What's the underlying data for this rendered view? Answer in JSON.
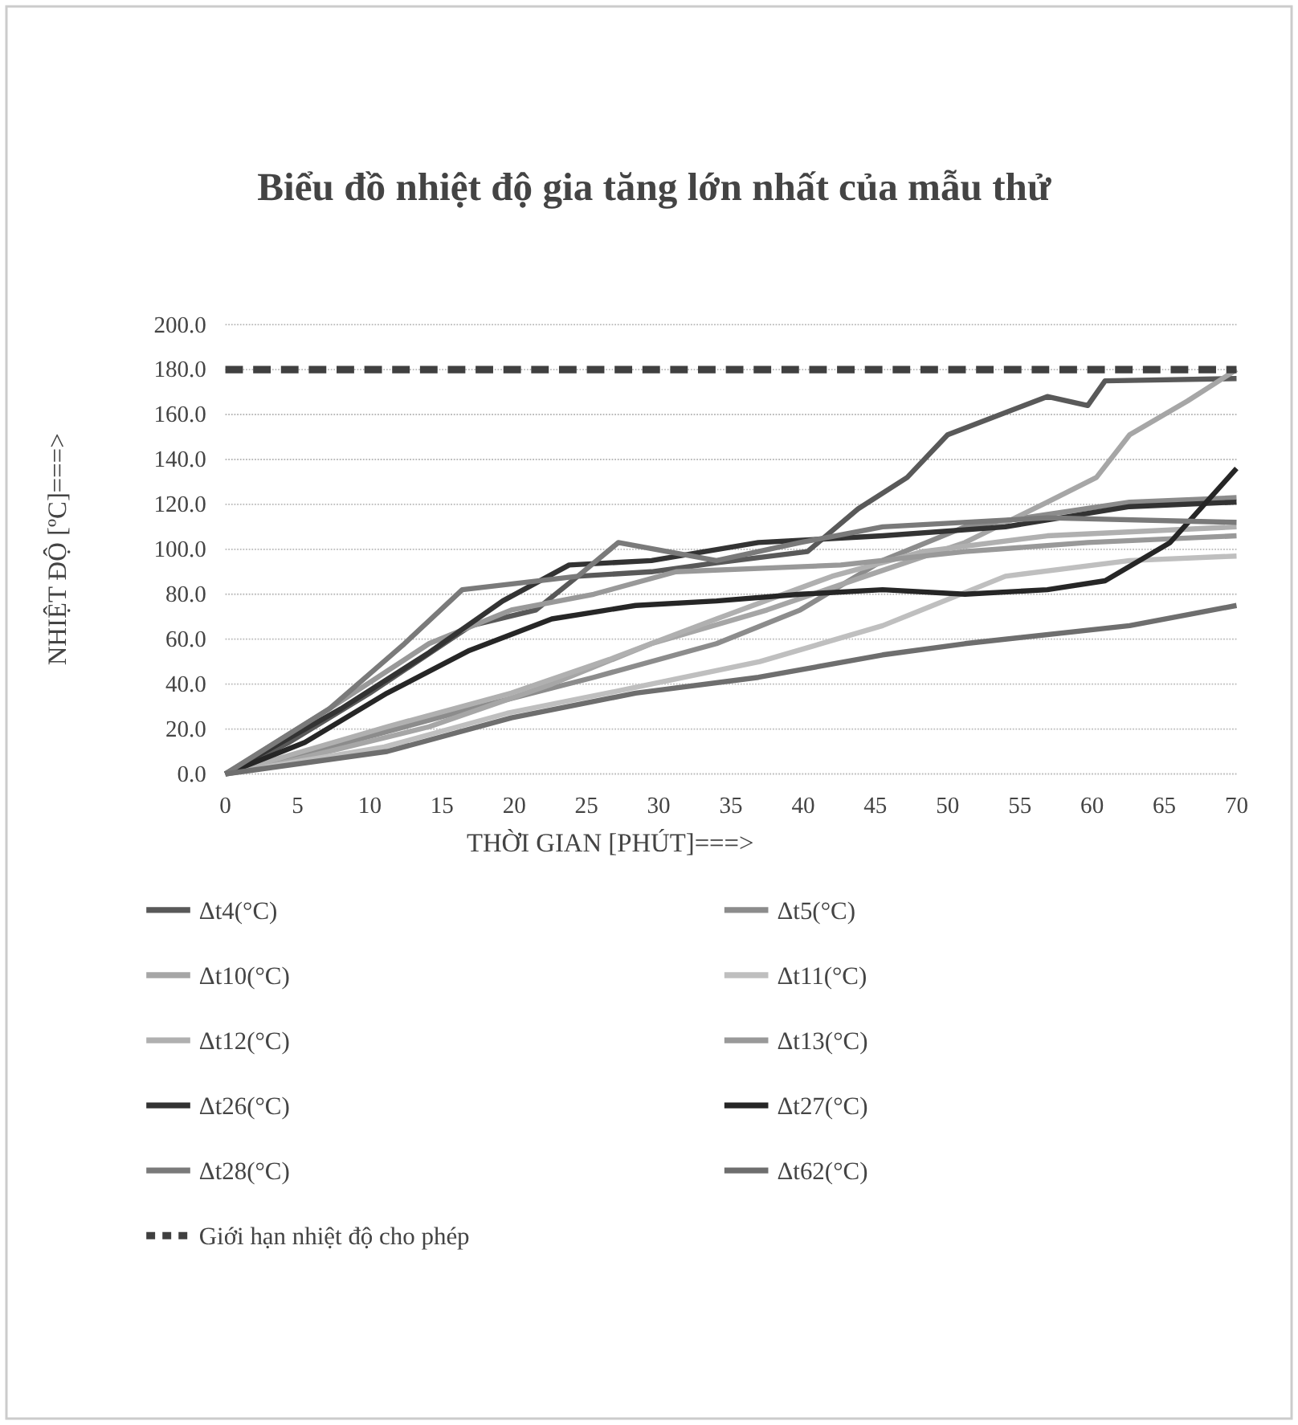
{
  "chart_data": {
    "type": "line",
    "title": "Biểu đồ nhiệt độ gia tăng lớn nhất của mẫu thử",
    "xlabel": "THỜI GIAN [PHÚT]===>",
    "ylabel": "NHIỆT ĐỘ [ºC]===>",
    "xlim": [
      0,
      70
    ],
    "xticks": [
      0,
      5,
      10,
      15,
      20,
      25,
      30,
      35,
      40,
      45,
      50,
      55,
      60,
      65,
      70
    ],
    "ylim": [
      0,
      200
    ],
    "yticks": [
      {
        "value": 0,
        "label": "0.0"
      },
      {
        "value": 20,
        "label": "20.0"
      },
      {
        "value": 40,
        "label": "40.0"
      },
      {
        "value": 60,
        "label": "60.0"
      },
      {
        "value": 80,
        "label": "80.0"
      },
      {
        "value": 100,
        "label": "100.0"
      },
      {
        "value": 120,
        "label": "120.0"
      },
      {
        "value": 140,
        "label": "140.0"
      },
      {
        "value": 160,
        "label": "160.0"
      },
      {
        "value": 180,
        "label": "180.0"
      },
      {
        "value": 200,
        "label": "200.0"
      }
    ],
    "grid": "y",
    "legend": "bottom",
    "series": [
      {
        "name": "Δt4(°C)",
        "color": "#595959",
        "x": [
          0,
          4.4,
          10,
          17,
          21.5,
          24.4,
          29.5,
          34,
          40.3,
          43.8,
          47.2,
          50,
          56.9,
          59.7,
          60.9,
          70
        ],
        "values": [
          0,
          14,
          36,
          66,
          73,
          88,
          90,
          94,
          99,
          118,
          132,
          151,
          168,
          164,
          175,
          176
        ]
      },
      {
        "name": "Δt5(°C)",
        "color": "#8c8c8c",
        "x": [
          0,
          8.4,
          17,
          25.5,
          34,
          39.8,
          45.5,
          51.2,
          62.6,
          70
        ],
        "values": [
          0,
          14,
          29,
          43,
          58,
          73,
          95,
          110,
          121,
          123
        ]
      },
      {
        "name": "Δt10(°C)",
        "color": "#a6a6a6",
        "x": [
          0,
          2.7,
          14.1,
          22.6,
          29.5,
          37.5,
          44.3,
          51.2,
          56.9,
          60.3,
          62.6,
          66.6,
          70
        ],
        "values": [
          0,
          3,
          21,
          40,
          58,
          73,
          88,
          103,
          121,
          132,
          151,
          166,
          180
        ]
      },
      {
        "name": "Δt11(°C)",
        "color": "#bfbfbf",
        "x": [
          0,
          11,
          19.5,
          28,
          37,
          45.5,
          54,
          62.6,
          70
        ],
        "values": [
          0,
          12,
          27,
          38,
          50,
          66,
          88,
          95,
          97
        ]
      },
      {
        "name": "Δt12(°C)",
        "color": "#b0b0b0",
        "x": [
          0,
          11.2,
          19.8,
          26.6,
          34,
          42,
          48.3,
          56.9,
          70
        ],
        "values": [
          0,
          21,
          36,
          51,
          69,
          88,
          99,
          106,
          110
        ]
      },
      {
        "name": "Δt13(°C)",
        "color": "#999999",
        "x": [
          0,
          7.2,
          14.1,
          19.8,
          25.5,
          31.2,
          42.6,
          51.2,
          59.7,
          70
        ],
        "values": [
          0,
          29,
          58,
          73,
          80,
          90,
          93,
          99,
          103,
          106
        ]
      },
      {
        "name": "Δt26(°C)",
        "color": "#333333",
        "x": [
          0,
          8,
          14.1,
          19.2,
          23.8,
          29.5,
          36.9,
          45.5,
          54,
          62.6,
          70
        ],
        "values": [
          0,
          29,
          54,
          77,
          93,
          95,
          103,
          106,
          110,
          119,
          121
        ]
      },
      {
        "name": "Δt27(°C)",
        "color": "#262626",
        "x": [
          0,
          5.5,
          11.2,
          16.9,
          22.6,
          28.4,
          34,
          39.8,
          45.5,
          51.2,
          56.9,
          60.9,
          65.4,
          70
        ],
        "values": [
          0,
          14,
          36,
          55,
          69,
          75,
          77,
          80,
          82,
          80,
          82,
          86,
          103,
          136
        ]
      },
      {
        "name": "Δt28(°C)",
        "color": "#7a7a7a",
        "x": [
          0,
          7.2,
          12.4,
          16.4,
          24.4,
          27.2,
          34,
          39.8,
          45.5,
          56.9,
          70
        ],
        "values": [
          0,
          29,
          58,
          82,
          88,
          103,
          95,
          103,
          110,
          114,
          112
        ]
      },
      {
        "name": "Δt62(°C)",
        "color": "#6e6e6e",
        "x": [
          0,
          11.2,
          19.8,
          28.4,
          36.9,
          45.5,
          51.2,
          62.6,
          70
        ],
        "values": [
          0,
          10,
          25,
          36,
          43,
          53,
          58,
          66,
          75
        ]
      },
      {
        "name": "Giới hạn nhiệt độ cho phép",
        "color": "#404040",
        "line_style": "dashed",
        "x": [
          0,
          70
        ],
        "values": [
          180,
          180
        ]
      }
    ]
  }
}
